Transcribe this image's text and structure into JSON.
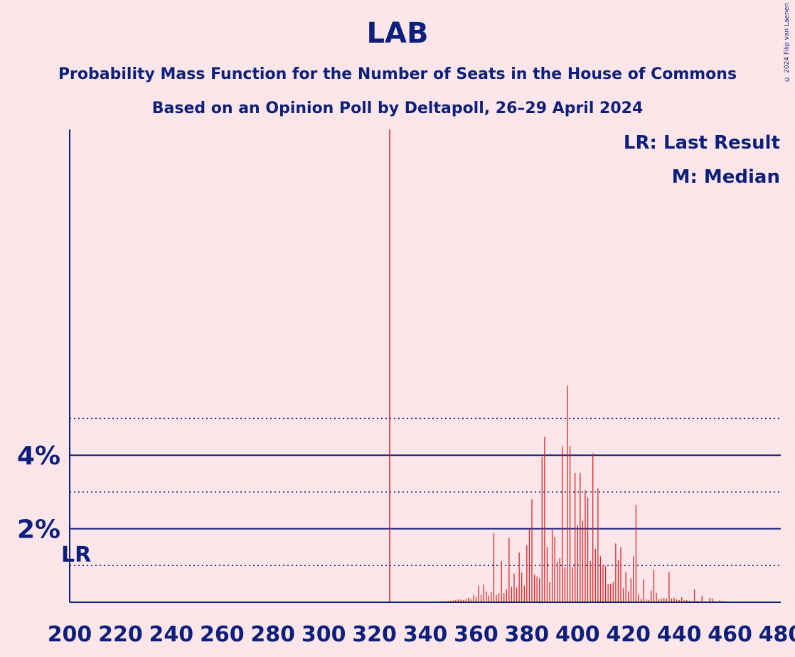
{
  "title": "LAB",
  "subtitle_line1": "Probability Mass Function for the Number of Seats in the House of Commons",
  "subtitle_line2": "Based on an Opinion Poll by Deltapoll, 26–29 April 2024",
  "copyright": "© 2024 Filip van Laenen",
  "legend": {
    "last_result": "LR: Last Result",
    "median": "M: Median"
  },
  "colors": {
    "background": "#fde6ea",
    "axis": "#0c1f7a",
    "bars": "#d62728",
    "majority_line": "#cc1e2b"
  },
  "chart_data": {
    "type": "bar",
    "xlim": [
      200,
      480
    ],
    "ylim": [
      0,
      6.5
    ],
    "x_ticks": [
      200,
      220,
      240,
      260,
      280,
      300,
      320,
      340,
      360,
      380,
      400,
      420,
      440,
      460,
      480
    ],
    "y_ticks_major": [
      2,
      4
    ],
    "y_tick_labels": [
      "2%",
      "4%"
    ],
    "y_grid_minor": [
      1,
      3,
      5
    ],
    "majority_line_x": 326,
    "last_result_label": "LR",
    "x": [
      338,
      339,
      340,
      341,
      342,
      343,
      344,
      345,
      346,
      347,
      348,
      349,
      350,
      351,
      352,
      353,
      354,
      355,
      356,
      357,
      358,
      359,
      360,
      361,
      362,
      363,
      364,
      365,
      366,
      367,
      368,
      369,
      370,
      371,
      372,
      373,
      374,
      375,
      376,
      377,
      378,
      379,
      380,
      381,
      382,
      383,
      384,
      385,
      386,
      387,
      388,
      389,
      390,
      391,
      392,
      393,
      394,
      395,
      396,
      397,
      398,
      399,
      400,
      401,
      402,
      403,
      404,
      405,
      406,
      407,
      408,
      409,
      410,
      411,
      412,
      413,
      414,
      415,
      416,
      417,
      418,
      419,
      420,
      421,
      422,
      423,
      424,
      425,
      426,
      427,
      428,
      429,
      430,
      431,
      432,
      433,
      434,
      435,
      436,
      437,
      438,
      439,
      440,
      441,
      442,
      443,
      444,
      445,
      446,
      447,
      448,
      449,
      450,
      451,
      452,
      453,
      454,
      455,
      456,
      457,
      458,
      459,
      460,
      461,
      462,
      463,
      464,
      465,
      466,
      467,
      468,
      469,
      470
    ],
    "values": [
      0.01,
      0.01,
      0.01,
      0.01,
      0.02,
      0.02,
      0.02,
      0.02,
      0.03,
      0.03,
      0.03,
      0.04,
      0.04,
      0.05,
      0.06,
      0.08,
      0.07,
      0.06,
      0.08,
      0.12,
      0.09,
      0.2,
      0.15,
      0.45,
      0.2,
      0.48,
      0.3,
      0.18,
      0.28,
      1.88,
      0.2,
      0.25,
      1.12,
      0.25,
      0.35,
      1.75,
      0.42,
      0.78,
      0.4,
      1.35,
      0.8,
      0.45,
      1.55,
      1.98,
      2.8,
      0.75,
      0.7,
      0.65,
      3.95,
      4.5,
      1.5,
      0.55,
      2.0,
      1.78,
      1.1,
      1.2,
      4.25,
      0.95,
      5.9,
      4.25,
      0.95,
      3.52,
      2.1,
      3.52,
      2.22,
      3.05,
      2.85,
      1.12,
      4.05,
      1.45,
      3.1,
      1.25,
      1.0,
      0.98,
      0.5,
      0.5,
      0.55,
      1.6,
      1.15,
      1.5,
      0.38,
      0.82,
      0.3,
      0.65,
      1.25,
      2.65,
      0.22,
      0.1,
      0.62,
      0.08,
      0.06,
      0.32,
      0.88,
      0.25,
      0.08,
      0.1,
      0.12,
      0.1,
      0.82,
      0.1,
      0.12,
      0.08,
      0.06,
      0.14,
      0.05,
      0.06,
      0.04,
      0.04,
      0.35,
      0.04,
      0.03,
      0.18,
      0.03,
      0.02,
      0.12,
      0.1,
      0.03,
      0.03,
      0.05,
      0.04,
      0.02,
      0.02,
      0.02,
      0.02,
      0.01,
      0.01,
      0.01,
      0.01,
      0.01,
      0.01,
      0.01,
      0.01,
      0.01
    ]
  }
}
